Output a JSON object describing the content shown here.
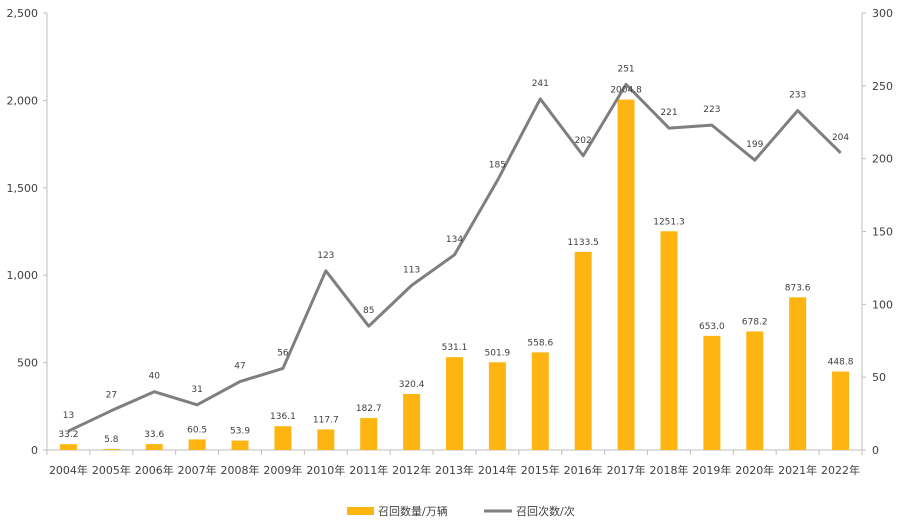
{
  "chart_data": {
    "type": "bar+line",
    "title": "",
    "categories": [
      "2004年",
      "2005年",
      "2006年",
      "2007年",
      "2008年",
      "2009年",
      "2010年",
      "2011年",
      "2012年",
      "2013年",
      "2014年",
      "2015年",
      "2016年",
      "2017年",
      "2018年",
      "2019年",
      "2020年",
      "2021年",
      "2022年"
    ],
    "series": [
      {
        "name": "召回数量/万辆",
        "type": "bar",
        "axis": "left",
        "color": "#FFB511",
        "values": [
          33.2,
          5.8,
          33.6,
          60.5,
          53.9,
          136.1,
          117.7,
          182.7,
          320.4,
          531.1,
          501.9,
          558.6,
          1133.5,
          2004.8,
          1251.3,
          653.0,
          678.2,
          873.6,
          448.8
        ],
        "labels": [
          "33.2",
          "5.8",
          "33.6",
          "60.5",
          "53.9",
          "136.1",
          "117.7",
          "182.7",
          "320.4",
          "531.1",
          "501.9",
          "558.6",
          "1133.5",
          "2004.8",
          "1251.3",
          "653.0",
          "678.2",
          "873.6",
          "448.8"
        ]
      },
      {
        "name": "召回次数/次",
        "type": "line",
        "axis": "right",
        "color": "#7F7F7F",
        "values": [
          13,
          27,
          40,
          31,
          47,
          56,
          123,
          85,
          113,
          134,
          185,
          241,
          202,
          251,
          221,
          223,
          199,
          233,
          204
        ],
        "labels": [
          "13",
          "27",
          "40",
          "31",
          "47",
          "56",
          "123",
          "85",
          "113",
          "134",
          "185",
          "241",
          "202",
          "251",
          "221",
          "223",
          "199",
          "233",
          "204"
        ]
      }
    ],
    "y_left": {
      "range": [
        0,
        2500
      ],
      "ticks": [
        "0",
        "500",
        "1,000",
        "1,500",
        "2,000",
        "2,500"
      ],
      "tick_values": [
        0,
        500,
        1000,
        1500,
        2000,
        2500
      ]
    },
    "y_right": {
      "range": [
        0,
        300
      ],
      "ticks": [
        "0",
        "50",
        "100",
        "150",
        "200",
        "250",
        "300"
      ],
      "tick_values": [
        0,
        50,
        100,
        150,
        200,
        250,
        300
      ]
    },
    "grid": false,
    "legend": "bottom-center"
  }
}
